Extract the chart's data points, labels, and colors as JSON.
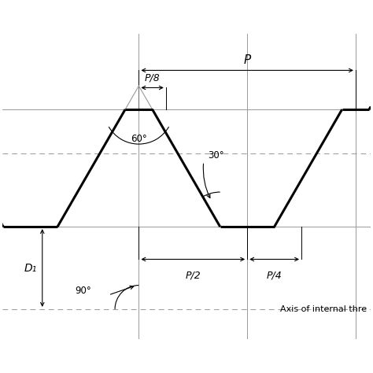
{
  "bg_color": "#ffffff",
  "lc": "#000000",
  "tlc": "#999999",
  "dc": "#999999",
  "P": 1.0,
  "figsize": [
    4.74,
    4.74
  ],
  "dpi": 100,
  "labels": {
    "P": "P",
    "P8": "P/8",
    "P2": "P/2",
    "P4": "P/4",
    "a60": "60°",
    "a30": "30°",
    "a90": "90°",
    "D1": "D₁",
    "axis": "Axis of internal thre"
  }
}
